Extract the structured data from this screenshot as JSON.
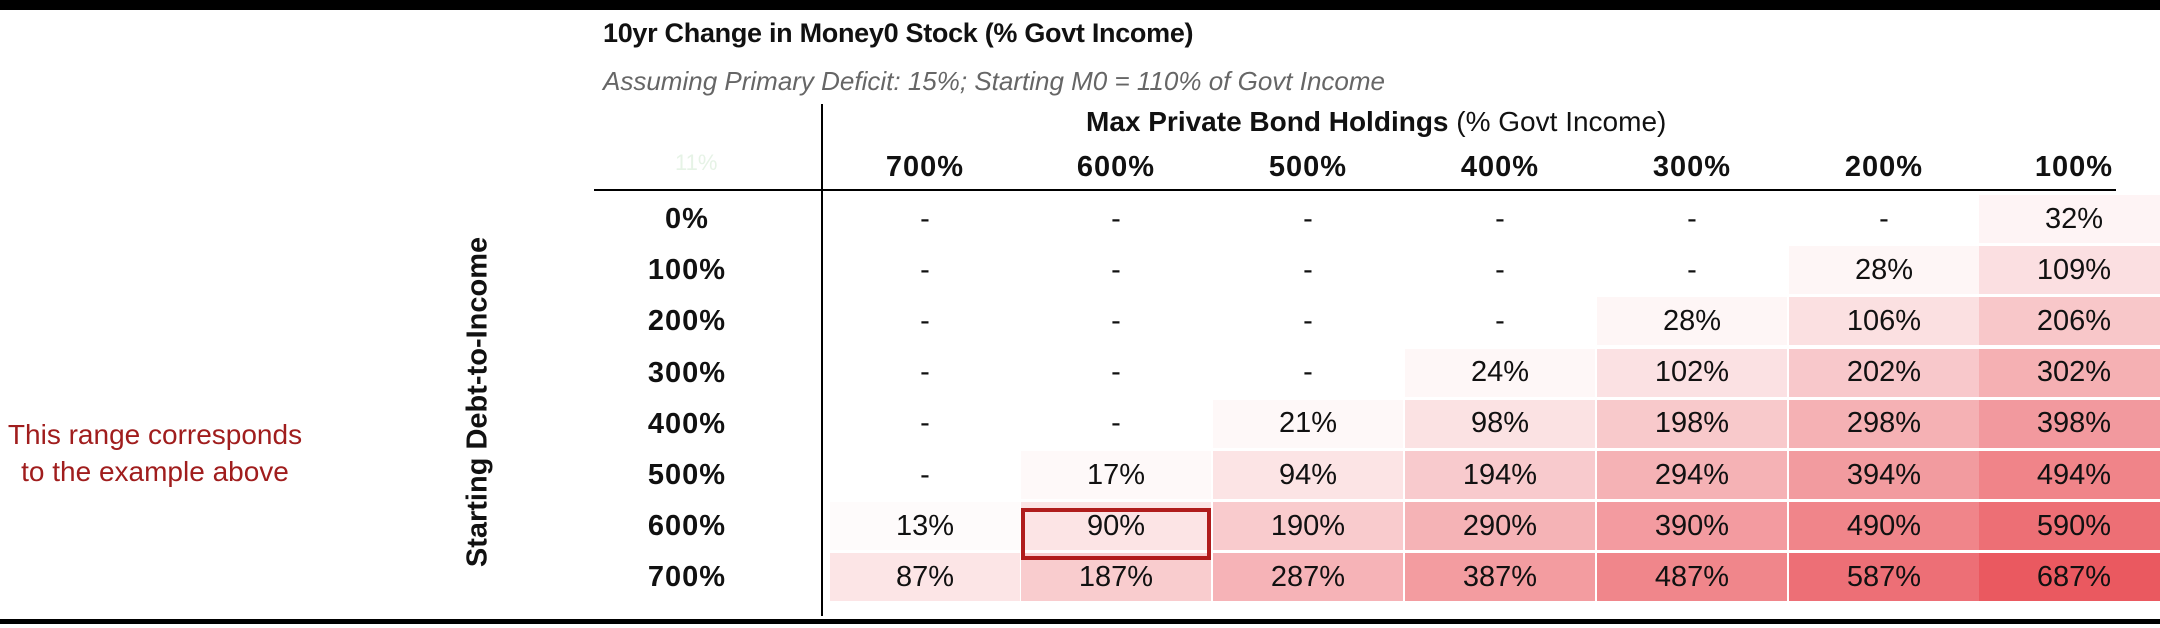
{
  "note_text": "This range corresponds to the example above",
  "highlight_color": "#b01c1c",
  "chart_data": {
    "type": "table",
    "title": "10yr Change in Money0 Stock (% Govt Income)",
    "subtitle": "Assuming Primary Deficit: 15%; Starting M0 = 110% of Govt Income",
    "column_header_bold": "Max Private Bond Holdings",
    "column_header_rest": " (% Govt Income)",
    "corner_label": "11%",
    "row_axis_label": "Starting Debt-to-Income",
    "columns": [
      "700%",
      "600%",
      "500%",
      "400%",
      "300%",
      "200%",
      "100%"
    ],
    "rows": [
      "0%",
      "100%",
      "200%",
      "300%",
      "400%",
      "500%",
      "600%",
      "700%"
    ],
    "cells": [
      [
        "-",
        "-",
        "-",
        "-",
        "-",
        "-",
        "32%"
      ],
      [
        "-",
        "-",
        "-",
        "-",
        "-",
        "28%",
        "109%"
      ],
      [
        "-",
        "-",
        "-",
        "-",
        "28%",
        "106%",
        "206%"
      ],
      [
        "-",
        "-",
        "-",
        "24%",
        "102%",
        "202%",
        "302%"
      ],
      [
        "-",
        "-",
        "21%",
        "98%",
        "198%",
        "298%",
        "398%"
      ],
      [
        "-",
        "17%",
        "94%",
        "194%",
        "294%",
        "394%",
        "494%"
      ],
      [
        "13%",
        "90%",
        "190%",
        "290%",
        "390%",
        "490%",
        "590%"
      ],
      [
        "87%",
        "187%",
        "287%",
        "387%",
        "487%",
        "587%",
        "687%"
      ]
    ],
    "values": [
      [
        null,
        null,
        null,
        null,
        null,
        null,
        32
      ],
      [
        null,
        null,
        null,
        null,
        null,
        28,
        109
      ],
      [
        null,
        null,
        null,
        null,
        28,
        106,
        206
      ],
      [
        null,
        null,
        null,
        24,
        102,
        202,
        302
      ],
      [
        null,
        null,
        21,
        98,
        198,
        298,
        398
      ],
      [
        null,
        17,
        94,
        194,
        294,
        394,
        494
      ],
      [
        13,
        90,
        190,
        290,
        390,
        490,
        590
      ],
      [
        87,
        187,
        287,
        387,
        487,
        587,
        687
      ]
    ],
    "heat_color": "#e8474f",
    "highlighted_cell": {
      "row": "600%",
      "column": "600%"
    }
  }
}
